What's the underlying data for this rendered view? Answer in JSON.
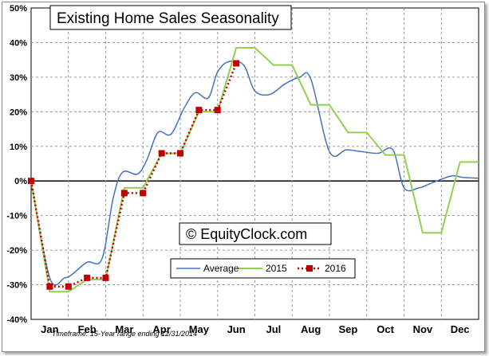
{
  "chart_data": {
    "type": "line",
    "title": "Existing Home Sales Seasonality",
    "watermark": "© EquityClock.com",
    "footnote": "Timeframe: 15-Year range ending 12/31/2014",
    "xlabel": "",
    "ylabel": "",
    "ylim": [
      -40,
      50
    ],
    "yticks": [
      -40,
      -30,
      -20,
      -10,
      0,
      10,
      20,
      30,
      40,
      50
    ],
    "ytick_labels": [
      "-40%",
      "-30%",
      "-20%",
      "-10%",
      "0%",
      "10%",
      "20%",
      "30%",
      "40%",
      "50%"
    ],
    "xlim": [
      0,
      12
    ],
    "month_labels": [
      "Jan",
      "Feb",
      "Mar",
      "Apr",
      "May",
      "Jun",
      "Jul",
      "Aug",
      "Sep",
      "Oct",
      "Nov",
      "Dec"
    ],
    "grid": true,
    "legend_position": "bottom-center",
    "series": [
      {
        "name": "Average",
        "color": "#4472c4",
        "style": "smooth-line",
        "x": [
          0,
          0.5,
          0.9,
          1.1,
          1.5,
          1.9,
          2.2,
          2.45,
          2.85,
          3.1,
          3.4,
          3.75,
          4.1,
          4.4,
          4.75,
          5.0,
          5.3,
          5.7,
          6.0,
          6.4,
          6.8,
          7.2,
          7.5,
          8.0,
          8.45,
          8.85,
          9.3,
          9.7,
          10.0,
          10.4,
          10.65,
          11.0,
          11.3,
          11.6,
          12.0
        ],
        "y": [
          0,
          -28,
          -28,
          -27,
          -23.5,
          -22.5,
          -5,
          2.5,
          2,
          6,
          14,
          13.5,
          21,
          25.5,
          24,
          31.5,
          34.5,
          33.5,
          26,
          25,
          28,
          30,
          29.5,
          8.5,
          9,
          8.5,
          8,
          9,
          -2,
          -2,
          -1,
          0.5,
          1.5,
          1,
          0.8
        ]
      },
      {
        "name": "2015",
        "color": "#92d050",
        "style": "line",
        "x": [
          0,
          0.5,
          1.0,
          1.5,
          2.0,
          2.5,
          3.0,
          3.5,
          4.0,
          4.5,
          5.0,
          5.5,
          6.0,
          6.5,
          7.0,
          7.5,
          8.0,
          8.5,
          9.0,
          9.5,
          10.0,
          10.5,
          11.0,
          11.5,
          12.0
        ],
        "y": [
          0,
          -32,
          -32,
          -28.5,
          -28.5,
          -2,
          -2,
          8,
          8,
          20,
          20,
          38.5,
          38.5,
          33.5,
          33.5,
          22,
          22,
          14,
          14,
          7.5,
          7.5,
          -15,
          -15,
          5.5,
          5.5
        ]
      },
      {
        "name": "2016",
        "color": "#c00000",
        "style": "dotted-line-square-markers",
        "x": [
          0,
          0.5,
          1.0,
          1.5,
          2.0,
          2.5,
          3.0,
          3.5,
          4.0,
          4.5,
          5.0,
          5.5
        ],
        "y": [
          0,
          -30.5,
          -30.5,
          -28,
          -28,
          -3.5,
          -3.5,
          8,
          8,
          20.5,
          20.5,
          34
        ]
      }
    ]
  }
}
